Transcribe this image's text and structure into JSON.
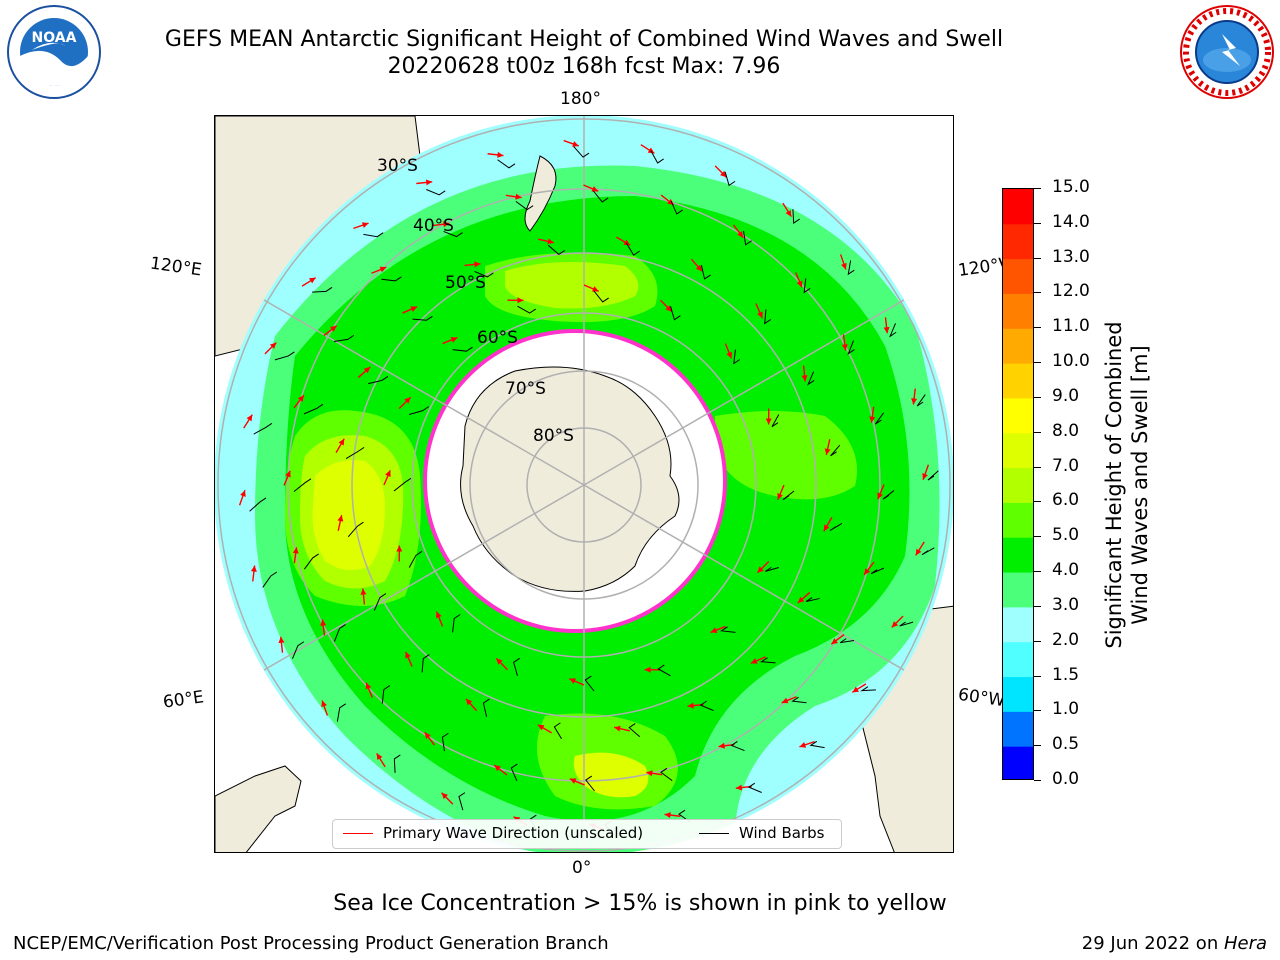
{
  "title": {
    "line1": "GEFS MEAN Antarctic Significant Height of Combined Wind Waves and Swell",
    "line2": "20220628 t00z 168h fcst   Max: 7.96"
  },
  "logos": {
    "left": "NOAA",
    "right": "NATIONAL WEATHER SERVICE"
  },
  "map": {
    "projection": "south-polar-stereographic",
    "lon_labels": {
      "top": "180°",
      "bottom": "0°",
      "left_upper": "120°E",
      "left_lower": "60°E",
      "right_upper": "120°W",
      "right_lower": "60°W"
    },
    "lat_labels": [
      "30°S",
      "40°S",
      "50°S",
      "60°S",
      "70°S",
      "80°S"
    ],
    "colors": {
      "land": "#efecdc",
      "ice": "#ffffff",
      "ice_edge": "#ff33cc",
      "arrow": "#ff0000",
      "barb": "#000000"
    }
  },
  "colorbar": {
    "label": "Significant Height of Combined Wind Waves and Swell [m]",
    "label_line1": "Significant Height of Combined",
    "label_line2": "Wind Waves and Swell [m]",
    "ticks": [
      "0.0",
      "0.5",
      "1.0",
      "1.5",
      "2.0",
      "3.0",
      "4.0",
      "5.0",
      "6.0",
      "7.0",
      "8.0",
      "9.0",
      "10.0",
      "11.0",
      "12.0",
      "13.0",
      "14.0",
      "15.0"
    ],
    "colors": [
      "#0000ff",
      "#0073ff",
      "#00e5ff",
      "#50ffff",
      "#9fffff",
      "#4cff7a",
      "#00ee00",
      "#60ff00",
      "#b2ff00",
      "#ddff00",
      "#ffff00",
      "#ffd200",
      "#ffaa00",
      "#ff8000",
      "#ff5500",
      "#ff2800",
      "#ff0000"
    ]
  },
  "legend": {
    "wave": "Primary Wave Direction (unscaled)",
    "barbs": "Wind Barbs"
  },
  "caption": "Sea Ice Concentration > 15% is shown in pink to yellow",
  "footer": {
    "left": "NCEP/EMC/Verification Post Processing Product Generation Branch",
    "date": "29 Jun 2022 on ",
    "machine": "Hera"
  }
}
